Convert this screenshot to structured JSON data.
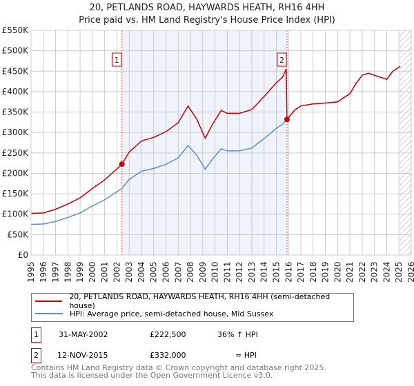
{
  "title": "20, PETLANDS ROAD, HAYWARDS HEATH, RH16 4HH",
  "subtitle": "Price paid vs. HM Land Registry's House Price Index (HPI)",
  "colors": {
    "price": "#cc0000",
    "hpi": "#5b8fd6",
    "shade": "#eef3fc"
  },
  "chart_data": {
    "type": "line",
    "xlim": [
      1995,
      2026
    ],
    "ylim": [
      0,
      550000
    ],
    "y_ticks": [
      0,
      50000,
      100000,
      150000,
      200000,
      250000,
      300000,
      350000,
      400000,
      450000,
      500000,
      550000
    ],
    "y_tick_labels": [
      "£0",
      "£50K",
      "£100K",
      "£150K",
      "£200K",
      "£250K",
      "£300K",
      "£350K",
      "£400K",
      "£450K",
      "£500K",
      "£550K"
    ],
    "x_ticks": [
      "1995",
      "1996",
      "1997",
      "1998",
      "1999",
      "2000",
      "2001",
      "2002",
      "2003",
      "2004",
      "2005",
      "2006",
      "2007",
      "2008",
      "2009",
      "2010",
      "2011",
      "2012",
      "2013",
      "2014",
      "2015",
      "2016",
      "2017",
      "2018",
      "2019",
      "2020",
      "2021",
      "2022",
      "2023",
      "2024",
      "2025",
      "2026"
    ],
    "grid": true,
    "shaded_range": [
      2002.41,
      2015.87
    ],
    "hatched_from": 2025.1,
    "series": [
      {
        "name": "20, PETLANDS ROAD, HAYWARDS HEATH, RH16 4HH (semi-detached house)",
        "color": "#cc0000",
        "x": [
          1995,
          1996,
          1997,
          1998,
          1999,
          2000,
          2001,
          2002,
          2002.41,
          2003,
          2004,
          2005,
          2006,
          2007,
          2007.8,
          2008.5,
          2009.2,
          2009.8,
          2010.5,
          2011,
          2012,
          2013,
          2014,
          2015,
          2015.5,
          2015.8,
          2015.87,
          2016.5,
          2017,
          2018,
          2019,
          2020,
          2020.5,
          2021,
          2021.5,
          2022,
          2022.5,
          2023,
          2023.5,
          2024,
          2024.5,
          2025.1
        ],
        "y": [
          102000,
          103000,
          112000,
          125000,
          140000,
          163000,
          184000,
          211000,
          222500,
          252000,
          279000,
          288000,
          302000,
          324000,
          365000,
          333000,
          286000,
          320000,
          354000,
          347000,
          347000,
          356000,
          388000,
          422000,
          435000,
          455000,
          332000,
          355000,
          365000,
          370000,
          372000,
          375000,
          385000,
          395000,
          420000,
          440000,
          445000,
          440000,
          435000,
          430000,
          450000,
          462000
        ]
      },
      {
        "name": "HPI: Average price, semi-detached house, Mid Sussex",
        "color": "#5b8fd6",
        "x": [
          1995,
          1996,
          1997,
          1998,
          1999,
          2000,
          2001,
          2002,
          2002.41,
          2003,
          2004,
          2005,
          2006,
          2007,
          2007.8,
          2008.5,
          2009.2,
          2009.8,
          2010.5,
          2011,
          2012,
          2013,
          2014,
          2015,
          2015.5,
          2015.87,
          2016.5,
          2017,
          2018,
          2019,
          2020,
          2020.5,
          2021,
          2021.5,
          2022,
          2022.5,
          2023,
          2023.5,
          2024,
          2024.5,
          2025.1
        ],
        "y": [
          75000,
          76000,
          82000,
          92000,
          103000,
          120000,
          135000,
          155000,
          163000,
          185000,
          205000,
          212000,
          222000,
          238000,
          268000,
          245000,
          210000,
          235000,
          260000,
          255000,
          255000,
          262000,
          285000,
          310000,
          320000,
          332000,
          355000,
          365000,
          370000,
          372000,
          375000,
          385000,
          395000,
          420000,
          440000,
          445000,
          440000,
          435000,
          430000,
          450000,
          462000
        ]
      }
    ],
    "annotations": [
      {
        "label": "1",
        "x": 2002.41,
        "y": 222500
      },
      {
        "label": "2",
        "x": 2015.87,
        "y": 332000
      }
    ]
  },
  "legend": [
    "20, PETLANDS ROAD, HAYWARDS HEATH, RH16 4HH (semi-detached house)",
    "HPI: Average price, semi-detached house, Mid Sussex"
  ],
  "transactions": [
    {
      "num": "1",
      "date": "31-MAY-2002",
      "price": "£222,500",
      "hpi": "36% ↑ HPI"
    },
    {
      "num": "2",
      "date": "12-NOV-2015",
      "price": "£332,000",
      "hpi": "≈ HPI"
    }
  ],
  "footer": [
    "Contains HM Land Registry data © Crown copyright and database right 2025.",
    "This data is licensed under the Open Government Licence v3.0."
  ]
}
